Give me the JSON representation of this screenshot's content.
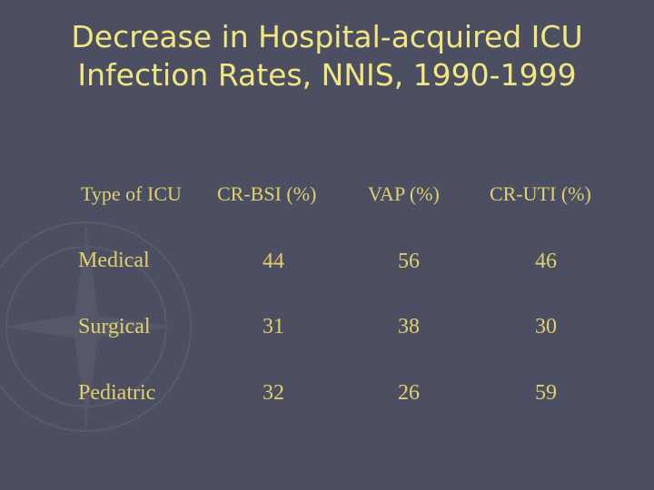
{
  "slide": {
    "title_line1": "Decrease in Hospital-acquired ICU",
    "title_line2": "Infection Rates, NNIS, 1990-1999"
  },
  "table": {
    "headers": [
      "Type of ICU",
      "CR-BSI (%)",
      "VAP (%)",
      "CR-UTI (%)"
    ],
    "rows": [
      [
        "Medical",
        "44",
        "56",
        "46"
      ],
      [
        "Surgical",
        "31",
        "38",
        "30"
      ],
      [
        "Pediatric",
        "32",
        "26",
        "59"
      ]
    ]
  },
  "colors": {
    "background": "#4b4f61",
    "title": "#f1e680",
    "table_text": "#e3cf6e"
  },
  "icons": [
    "compass-rose-watermark-icon"
  ]
}
